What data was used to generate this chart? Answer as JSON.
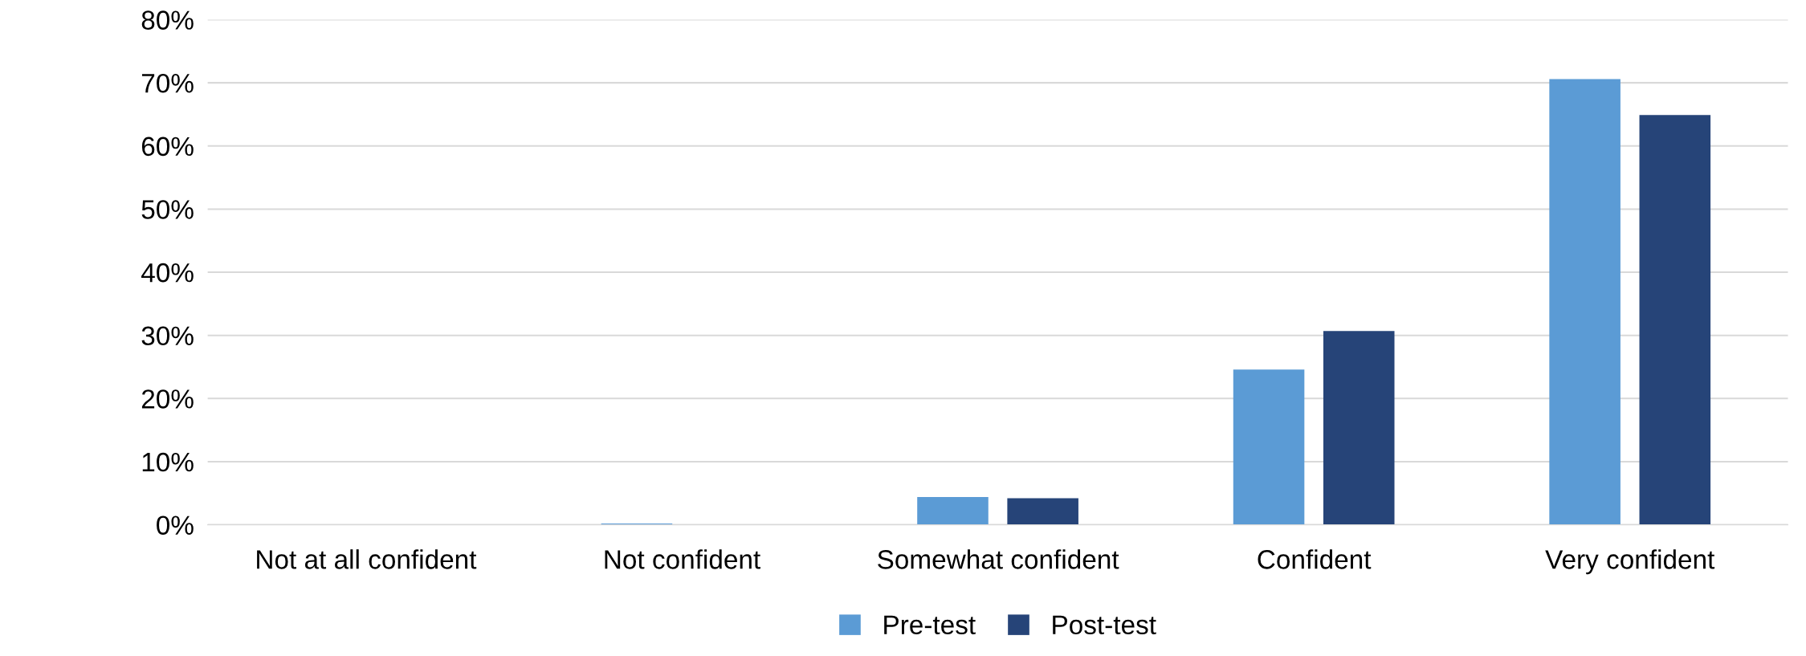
{
  "chart_data": {
    "type": "bar",
    "categories": [
      "Not at all confident",
      "Not confident",
      "Somewhat confident",
      "Confident",
      "Very confident"
    ],
    "series": [
      {
        "name": "Pre-test",
        "color": "#5b9bd5",
        "values": [
          0,
          0.2,
          4.4,
          24.6,
          70.6
        ]
      },
      {
        "name": "Post-test",
        "color": "#264478",
        "values": [
          0,
          0,
          4.2,
          30.7,
          64.9
        ]
      }
    ],
    "ylim": [
      0,
      80
    ],
    "yticks": [
      {
        "value": 0,
        "label": "0%"
      },
      {
        "value": 10,
        "label": "10%"
      },
      {
        "value": 20,
        "label": "20%"
      },
      {
        "value": 30,
        "label": "30%"
      },
      {
        "value": 40,
        "label": "40%"
      },
      {
        "value": 50,
        "label": "50%"
      },
      {
        "value": 60,
        "label": "60%"
      },
      {
        "value": 70,
        "label": "70%"
      },
      {
        "value": 80,
        "label": "80%"
      }
    ],
    "grid": "y",
    "legend": "bottom"
  }
}
